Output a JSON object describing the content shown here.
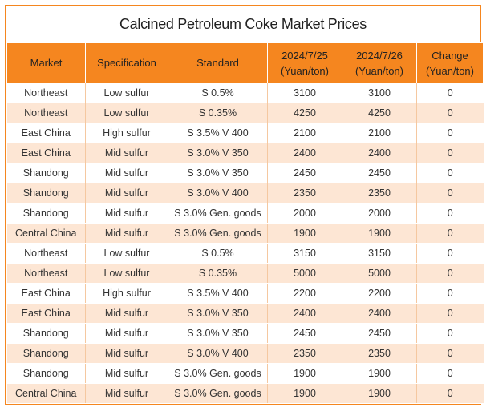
{
  "title": "Calcined Petroleum Coke Market Prices",
  "headers": {
    "market": "Market",
    "specification": "Specification",
    "standard": "Standard",
    "date1_line1": "2024/7/25",
    "date1_line2": "(Yuan/ton)",
    "date2_line1": "2024/7/26",
    "date2_line2": "(Yuan/ton)",
    "change_line1": "Change",
    "change_line2": "(Yuan/ton)"
  },
  "rows": [
    {
      "market": "Northeast",
      "spec": "Low sulfur",
      "standard": "S 0.5%",
      "p1": "3100",
      "p2": "3100",
      "change": "0"
    },
    {
      "market": "Northeast",
      "spec": "Low sulfur",
      "standard": "S 0.35%",
      "p1": "4250",
      "p2": "4250",
      "change": "0"
    },
    {
      "market": "East China",
      "spec": "High sulfur",
      "standard": "S 3.5% V 400",
      "p1": "2100",
      "p2": "2100",
      "change": "0"
    },
    {
      "market": "East China",
      "spec": "Mid sulfur",
      "standard": "S 3.0% V 350",
      "p1": "2400",
      "p2": "2400",
      "change": "0"
    },
    {
      "market": "Shandong",
      "spec": "Mid sulfur",
      "standard": "S 3.0% V 350",
      "p1": "2450",
      "p2": "2450",
      "change": "0"
    },
    {
      "market": "Shandong",
      "spec": "Mid sulfur",
      "standard": "S 3.0% V 400",
      "p1": "2350",
      "p2": "2350",
      "change": "0"
    },
    {
      "market": "Shandong",
      "spec": "Mid sulfur",
      "standard": "S 3.0% Gen. goods",
      "p1": "2000",
      "p2": "2000",
      "change": "0"
    },
    {
      "market": "Central China",
      "spec": "Mid sulfur",
      "standard": "S 3.0% Gen. goods",
      "p1": "1900",
      "p2": "1900",
      "change": "0"
    },
    {
      "market": "Northeast",
      "spec": "Low sulfur",
      "standard": "S 0.5%",
      "p1": "3150",
      "p2": "3150",
      "change": "0"
    },
    {
      "market": "Northeast",
      "spec": "Low sulfur",
      "standard": "S 0.35%",
      "p1": "5000",
      "p2": "5000",
      "change": "0"
    },
    {
      "market": "East China",
      "spec": "High sulfur",
      "standard": "S 3.5% V 400",
      "p1": "2200",
      "p2": "2200",
      "change": "0"
    },
    {
      "market": "East China",
      "spec": "Mid sulfur",
      "standard": "S 3.0% V 350",
      "p1": "2400",
      "p2": "2400",
      "change": "0"
    },
    {
      "market": "Shandong",
      "spec": "Mid sulfur",
      "standard": "S 3.0% V 350",
      "p1": "2450",
      "p2": "2450",
      "change": "0"
    },
    {
      "market": "Shandong",
      "spec": "Mid sulfur",
      "standard": "S 3.0% V 400",
      "p1": "2350",
      "p2": "2350",
      "change": "0"
    },
    {
      "market": "Shandong",
      "spec": "Mid sulfur",
      "standard": "S 3.0% Gen. goods",
      "p1": "1900",
      "p2": "1900",
      "change": "0"
    },
    {
      "market": "Central China",
      "spec": "Mid sulfur",
      "standard": "S 3.0% Gen. goods",
      "p1": "1900",
      "p2": "1900",
      "change": "0"
    }
  ],
  "colors": {
    "accent": "#f5861f",
    "row_alt": "#fde6d4"
  }
}
